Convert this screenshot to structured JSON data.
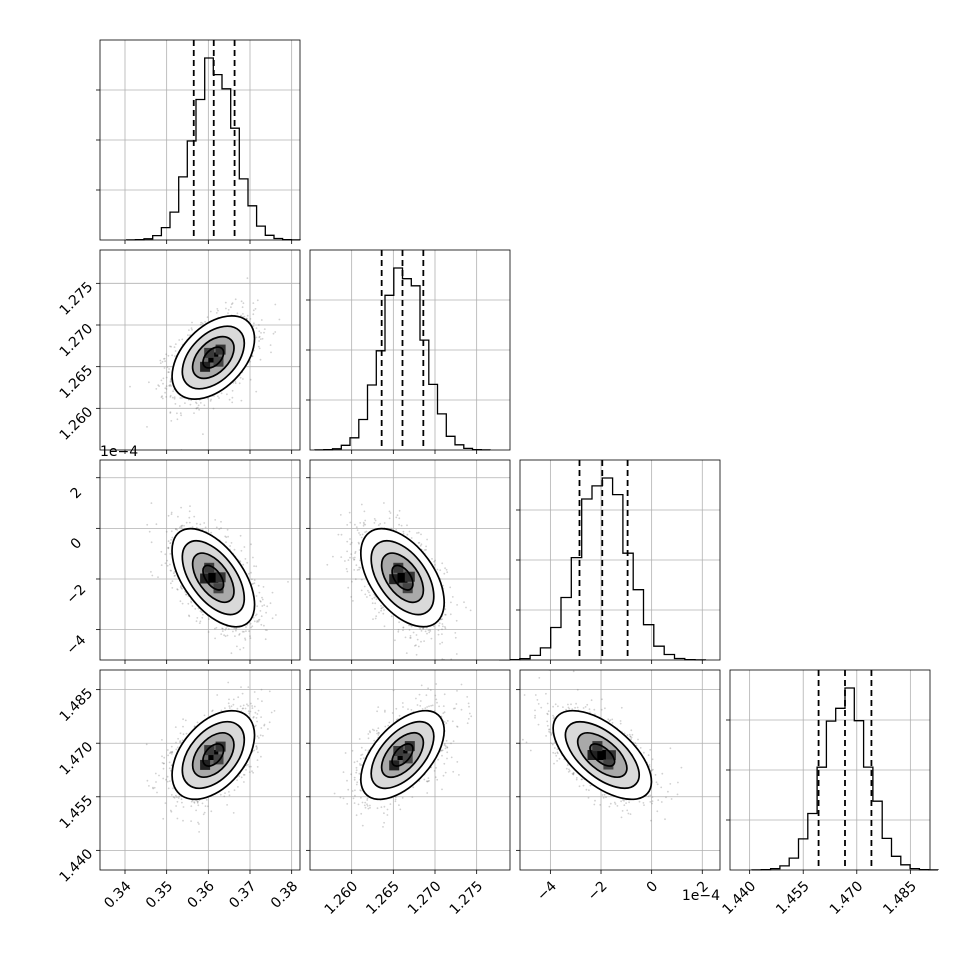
{
  "chart_data": {
    "type": "corner",
    "parameters": [
      {
        "range": [
          0.334,
          0.382
        ],
        "ticks": [
          0.34,
          0.35,
          0.36,
          0.37,
          0.38
        ],
        "tick_labels": [
          "0.34",
          "0.35",
          "0.36",
          "0.37",
          "0.38"
        ],
        "mean": 0.3612,
        "sd": 0.00495,
        "quantiles": [
          0.3565,
          0.3613,
          0.3663
        ],
        "offset": ""
      },
      {
        "range": [
          1.255,
          1.279
        ],
        "ticks": [
          1.26,
          1.265,
          1.27,
          1.275
        ],
        "tick_labels": [
          "1.260",
          "1.265",
          "1.270",
          "1.275"
        ],
        "mean": 1.2661,
        "sd": 0.0025,
        "quantiles": [
          1.2636,
          1.2661,
          1.2686
        ],
        "offset": ""
      },
      {
        "range": [
          -5.2,
          2.7
        ],
        "ticks": [
          -4,
          -2,
          0,
          2
        ],
        "tick_labels": [
          "−4",
          "−2",
          "0",
          "2"
        ],
        "mean": -1.95,
        "sd": 0.97,
        "quantiles": [
          -2.85,
          -1.95,
          -0.95
        ],
        "offset": "1e−4"
      },
      {
        "range": [
          1.4345,
          1.4905
        ],
        "ticks": [
          1.44,
          1.455,
          1.47,
          1.485
        ],
        "tick_labels": [
          "1.440",
          "1.455",
          "1.470",
          "1.485"
        ],
        "mean": 1.4667,
        "sd": 0.0062,
        "quantiles": [
          1.4593,
          1.4667,
          1.4741
        ],
        "offset": ""
      }
    ],
    "correlations": [
      [
        1,
        0.45,
        -0.55,
        0.45
      ],
      [
        0.45,
        1,
        -0.5,
        0.55
      ],
      [
        -0.55,
        -0.5,
        1,
        -0.6
      ],
      [
        0.45,
        0.55,
        -0.6,
        1
      ]
    ],
    "contour_levels_sigma": [
      0.5,
      1.0,
      1.5,
      2.0
    ],
    "grid": true,
    "quantile_lines": "dashed",
    "offset_label_y": "1e−4",
    "offset_label_x": "1e−4"
  }
}
